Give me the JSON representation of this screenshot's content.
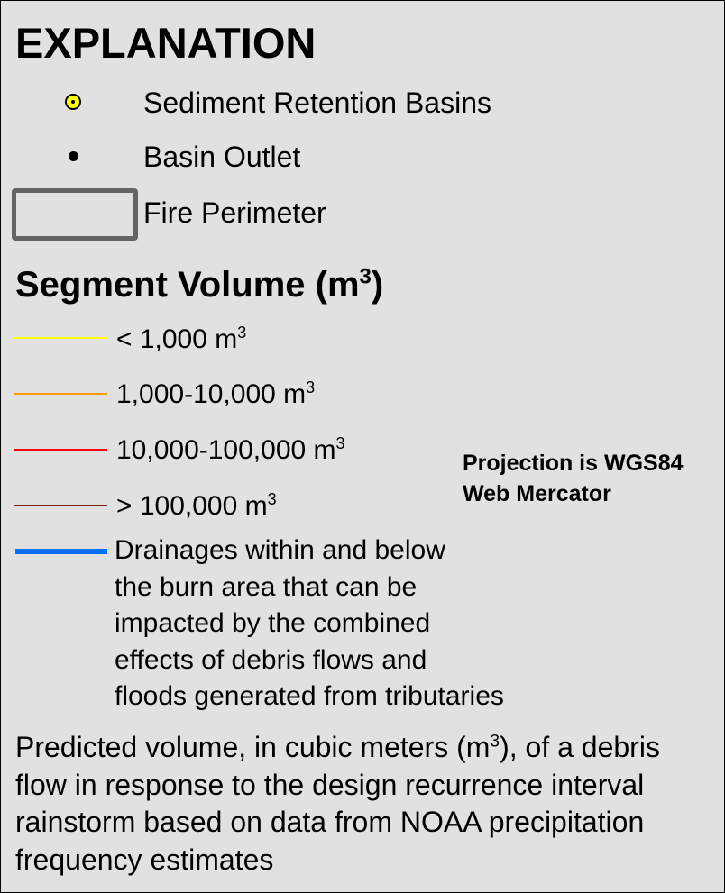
{
  "title": "EXPLANATION",
  "symbols": {
    "basins_label": "Sediment Retention Basins",
    "outlet_label": "Basin Outlet",
    "perimeter_label": "Fire Perimeter"
  },
  "segment_volume": {
    "title": "Segment Volume (m",
    "title_sup": "3",
    "title_end": ")",
    "unit_text": " m",
    "unit_sup": "3",
    "classes": [
      {
        "range": "< 1,000",
        "color": "#ffff00"
      },
      {
        "range": "1,000-10,000",
        "color": "#ff9900"
      },
      {
        "range": "10,000-100,000",
        "color": "#ff0000"
      },
      {
        "range": "> 100,000",
        "color": "#732600"
      }
    ]
  },
  "drainages": {
    "color": "#0070ff",
    "lines": [
      "Drainages within and below",
      "the burn area that can be",
      "impacted by the combined",
      "effects of debris flows and",
      "floods generated from tributaries"
    ]
  },
  "projection": {
    "line1": "Projection is WGS84",
    "line2": "Web Mercator"
  },
  "caption": {
    "part1": "Predicted volume, in cubic meters (m",
    "sup": "3",
    "part2": "), of a debris flow in response to the design recurrence interval rainstorm based on data from NOAA precipitation frequency estimates"
  },
  "colors": {
    "panel_background": "#e1e1e1",
    "perimeter": "#646464",
    "basin_fill": "#ffff00"
  }
}
